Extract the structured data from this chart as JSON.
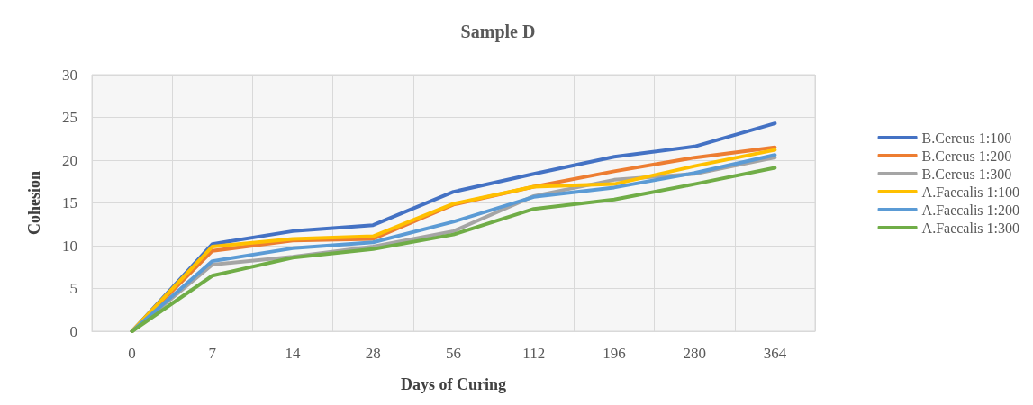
{
  "chart_data": {
    "type": "line",
    "title": "Sample D",
    "xlabel": "Days of Curing",
    "ylabel": "Cohesion",
    "categories": [
      "0",
      "7",
      "14",
      "28",
      "56",
      "112",
      "196",
      "280",
      "364"
    ],
    "series": [
      {
        "name": "B.Cereus 1:100",
        "color": "#4472c4",
        "values": [
          0,
          10.2,
          11.7,
          12.4,
          16.3,
          18.4,
          20.4,
          21.6,
          24.3
        ]
      },
      {
        "name": "B.Cereus 1:200",
        "color": "#ed7d31",
        "values": [
          0,
          9.4,
          10.6,
          10.8,
          14.8,
          16.9,
          18.7,
          20.3,
          21.5
        ]
      },
      {
        "name": "B.Cereus 1:300",
        "color": "#a5a5a5",
        "values": [
          0,
          7.8,
          8.7,
          9.9,
          11.7,
          15.8,
          17.7,
          18.4,
          20.3
        ]
      },
      {
        "name": "A.Faecalis 1:100",
        "color": "#ffc000",
        "values": [
          0,
          9.9,
          10.8,
          11.1,
          14.9,
          16.9,
          17.2,
          19.3,
          21.2
        ]
      },
      {
        "name": "A.Faecalis 1:200",
        "color": "#5b9bd5",
        "values": [
          0,
          8.2,
          9.7,
          10.4,
          12.8,
          15.7,
          16.8,
          18.5,
          20.6
        ]
      },
      {
        "name": "A.Faecalis 1:300",
        "color": "#70ad47",
        "values": [
          0,
          6.5,
          8.6,
          9.6,
          11.3,
          14.3,
          15.4,
          17.2,
          19.1
        ]
      }
    ],
    "ylim": [
      0,
      30
    ],
    "yticks": [
      0,
      5,
      10,
      15,
      20,
      25,
      30
    ],
    "grid": true,
    "legend": "right",
    "marker": "none",
    "line_style": "solid"
  }
}
